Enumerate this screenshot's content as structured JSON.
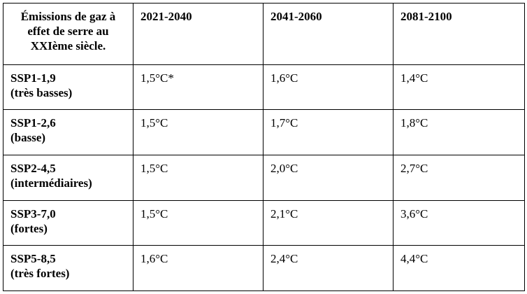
{
  "table": {
    "corner_header": [
      "Émissions de gaz à",
      "effet de serre au",
      "XXIème siècle."
    ],
    "columns": [
      "2021-2040",
      "2041-2060",
      "2081-2100"
    ],
    "rows": [
      {
        "scenario": "SSP1-1,9",
        "level": "(très basses)",
        "values": [
          "1,5°C*",
          "1,6°C",
          "1,4°C"
        ]
      },
      {
        "scenario": "SSP1-2,6",
        "level": "(basse)",
        "values": [
          "1,5°C",
          "1,7°C",
          "1,8°C"
        ]
      },
      {
        "scenario": "SSP2-4,5",
        "level": "(intermédiaires)",
        "values": [
          "1,5°C",
          "2,0°C",
          "2,7°C"
        ]
      },
      {
        "scenario": "SSP3-7,0",
        "level": "(fortes)",
        "values": [
          "1,5°C",
          "2,1°C",
          "3,6°C"
        ]
      },
      {
        "scenario": "SSP5-8,5",
        "level": "(très fortes)",
        "values": [
          "1,6°C",
          "2,4°C",
          "4,4°C"
        ]
      }
    ]
  }
}
